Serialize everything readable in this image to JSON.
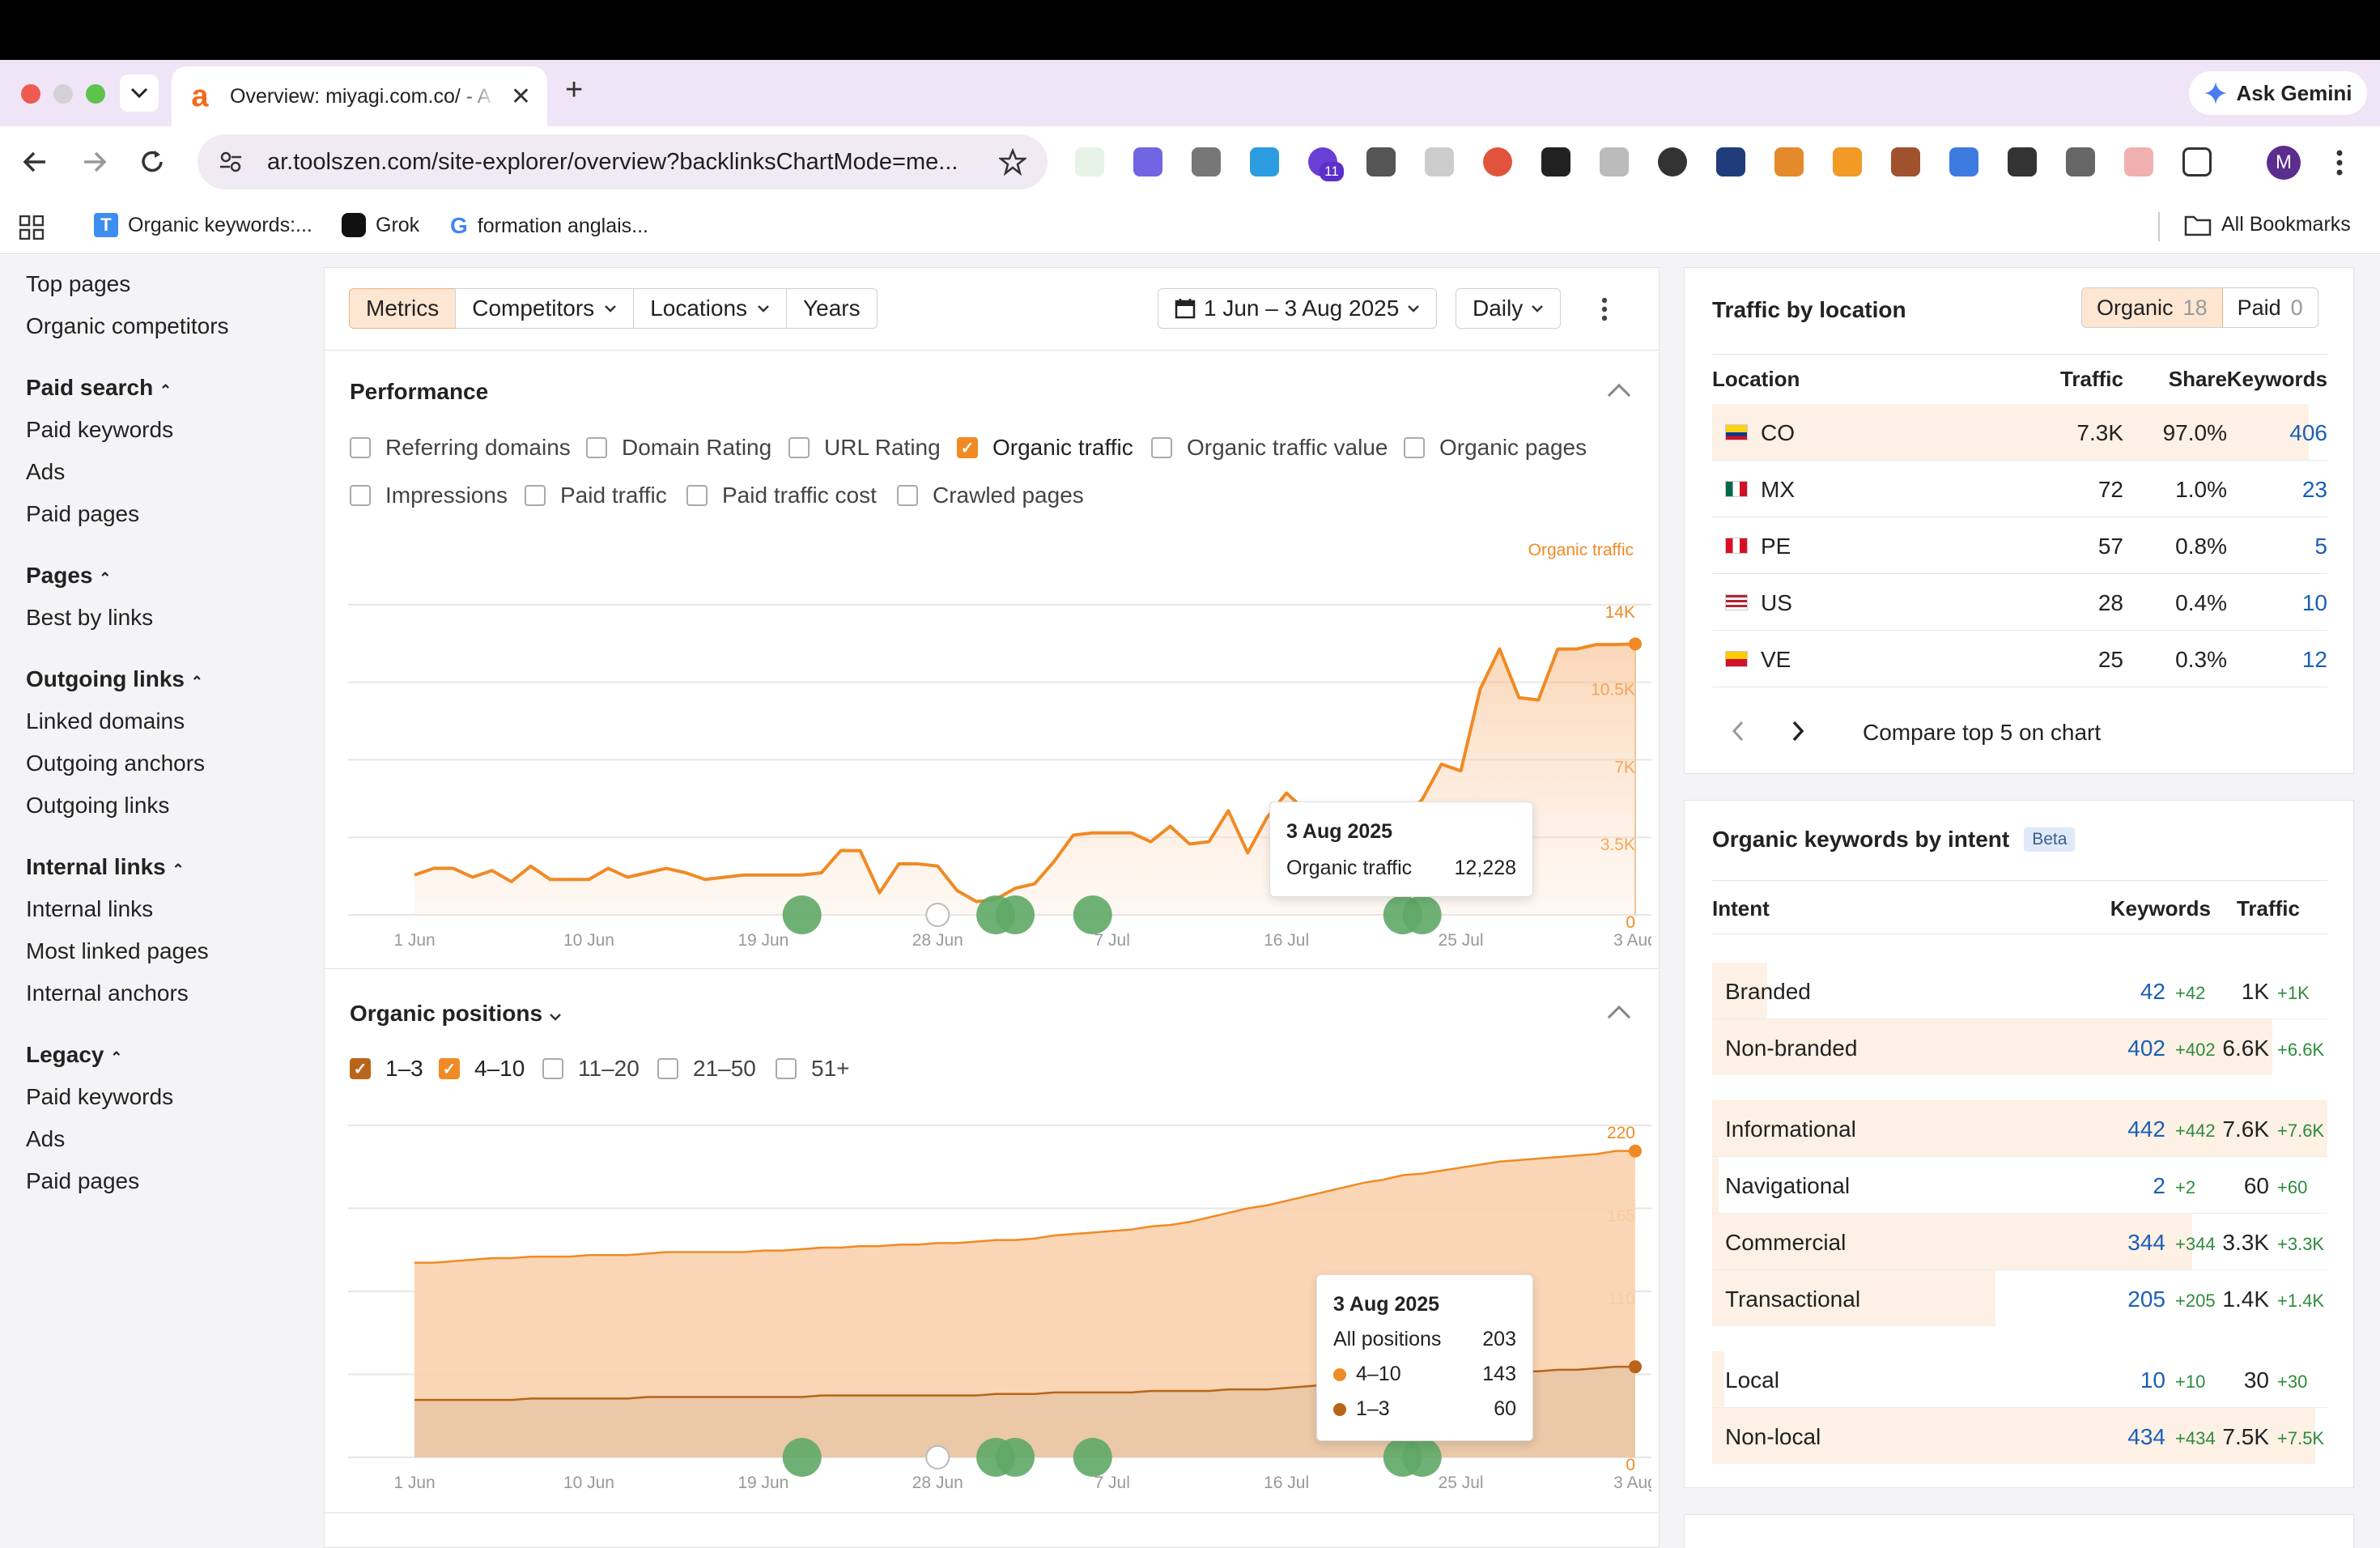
{
  "browser": {
    "tab_title": "Overview: miyagi.com.co/ - A",
    "new_tab": "+",
    "ask_gemini": "Ask Gemini",
    "url": "ar.toolszen.com/site-explorer/overview?backlinksChartMode=me...",
    "profile_initial": "M",
    "extension_badge": "11",
    "bookmarks": [
      {
        "label": "Organic keywords:..."
      },
      {
        "label": "Grok"
      },
      {
        "label": "formation anglais..."
      }
    ],
    "all_bookmarks": "All Bookmarks"
  },
  "sidebar": {
    "top_items": [
      "Top pages",
      "Organic competitors"
    ],
    "sections": [
      {
        "heading": "Paid search",
        "items": [
          "Paid keywords",
          "Ads",
          "Paid pages"
        ]
      },
      {
        "heading": "Pages",
        "items": [
          "Best by links"
        ]
      },
      {
        "heading": "Outgoing links",
        "items": [
          "Linked domains",
          "Outgoing anchors",
          "Outgoing links"
        ]
      },
      {
        "heading": "Internal links",
        "items": [
          "Internal links",
          "Most linked pages",
          "Internal anchors"
        ]
      },
      {
        "heading": "Legacy",
        "items": [
          "Paid keywords",
          "Ads",
          "Paid pages"
        ]
      }
    ]
  },
  "filters": {
    "tabs": [
      "Metrics",
      "Competitors",
      "Locations",
      "Years"
    ],
    "active_tab": "Metrics",
    "date_range": "1 Jun – 3 Aug 2025",
    "granularity": "Daily"
  },
  "performance": {
    "title": "Performance",
    "checkboxes_row1": [
      {
        "label": "Referring domains",
        "checked": false
      },
      {
        "label": "Domain Rating",
        "checked": false
      },
      {
        "label": "URL Rating",
        "checked": false
      },
      {
        "label": "Organic traffic",
        "checked": true
      },
      {
        "label": "Organic traffic value",
        "checked": false
      },
      {
        "label": "Organic pages",
        "checked": false
      }
    ],
    "checkboxes_row2": [
      {
        "label": "Impressions",
        "checked": false
      },
      {
        "label": "Paid traffic",
        "checked": false
      },
      {
        "label": "Paid traffic cost",
        "checked": false
      },
      {
        "label": "Crawled pages",
        "checked": false
      }
    ],
    "series_label": "Organic traffic",
    "tooltip": {
      "date": "3 Aug 2025",
      "label": "Organic traffic",
      "value": "12,228"
    }
  },
  "positions": {
    "title": "Organic positions",
    "checkboxes": [
      {
        "label": "1–3",
        "checked": true
      },
      {
        "label": "4–10",
        "checked": true
      },
      {
        "label": "11–20",
        "checked": false
      },
      {
        "label": "21–50",
        "checked": false
      },
      {
        "label": "51+",
        "checked": false
      }
    ],
    "tooltip": {
      "date": "3 Aug 2025",
      "rows": [
        {
          "label": "All positions",
          "value": "203"
        },
        {
          "label": "4–10",
          "value": "143"
        },
        {
          "label": "1–3",
          "value": "60"
        }
      ]
    }
  },
  "chart_data": [
    {
      "type": "area",
      "series": [
        {
          "name": "Organic traffic",
          "color": "#f08a24"
        }
      ],
      "x": [
        "1 Jun",
        "2 Jun",
        "3 Jun",
        "4 Jun",
        "5 Jun",
        "6 Jun",
        "7 Jun",
        "8 Jun",
        "9 Jun",
        "10 Jun",
        "11 Jun",
        "12 Jun",
        "13 Jun",
        "14 Jun",
        "15 Jun",
        "16 Jun",
        "17 Jun",
        "18 Jun",
        "19 Jun",
        "20 Jun",
        "21 Jun",
        "22 Jun",
        "23 Jun",
        "24 Jun",
        "25 Jun",
        "26 Jun",
        "27 Jun",
        "28 Jun",
        "29 Jun",
        "30 Jun",
        "1 Jul",
        "2 Jul",
        "3 Jul",
        "4 Jul",
        "5 Jul",
        "6 Jul",
        "7 Jul",
        "8 Jul",
        "9 Jul",
        "10 Jul",
        "11 Jul",
        "12 Jul",
        "13 Jul",
        "14 Jul",
        "15 Jul",
        "16 Jul",
        "17 Jul",
        "18 Jul",
        "19 Jul",
        "20 Jul",
        "21 Jul",
        "22 Jul",
        "23 Jul",
        "24 Jul",
        "25 Jul",
        "26 Jul",
        "27 Jul",
        "28 Jul",
        "29 Jul",
        "30 Jul",
        "31 Jul",
        "1 Aug",
        "2 Aug",
        "3 Aug"
      ],
      "values": [
        1800,
        2100,
        2100,
        1700,
        2000,
        1500,
        2200,
        1600,
        1600,
        1600,
        2100,
        1700,
        1900,
        2100,
        1900,
        1600,
        1700,
        1800,
        1800,
        1800,
        1800,
        1900,
        2900,
        2900,
        1000,
        2300,
        2300,
        2200,
        1100,
        600,
        700,
        1200,
        1400,
        2400,
        3600,
        3700,
        3700,
        3700,
        3300,
        4000,
        3200,
        3300,
        4700,
        2800,
        4400,
        5500,
        4700,
        4800,
        4900,
        4900,
        4400,
        4400,
        5200,
        6800,
        6500,
        10200,
        12000,
        9800,
        9700,
        12000,
        12000,
        12200,
        12200,
        12228
      ],
      "xticks": [
        "1 Jun",
        "10 Jun",
        "19 Jun",
        "28 Jun",
        "7 Jul",
        "16 Jul",
        "25 Jul",
        "3 Aug"
      ],
      "yticks": [
        "14K",
        "10.5K",
        "7K",
        "3.5K",
        "0"
      ],
      "ylim": [
        0,
        14000
      ]
    },
    {
      "type": "area",
      "series": [
        {
          "name": "4–10",
          "color": "#f08a24",
          "values": [
            91,
            91,
            92,
            93,
            94,
            94,
            94,
            94,
            94,
            95,
            95,
            95,
            95,
            96,
            96,
            96,
            96,
            96,
            97,
            97,
            98,
            98,
            98,
            99,
            99,
            100,
            100,
            101,
            101,
            102,
            102,
            102,
            103,
            104,
            105,
            106,
            107,
            108,
            109,
            110,
            112,
            115,
            117,
            120,
            122,
            124,
            126,
            128,
            130,
            132,
            134,
            136,
            136,
            137,
            138,
            139,
            140,
            140,
            141,
            141,
            142,
            142,
            143,
            143
          ]
        },
        {
          "name": "1–3",
          "color": "#b8651a",
          "values": [
            38,
            38,
            38,
            38,
            38,
            38,
            39,
            39,
            39,
            39,
            39,
            39,
            40,
            40,
            40,
            40,
            40,
            40,
            40,
            40,
            40,
            41,
            41,
            41,
            41,
            41,
            41,
            41,
            41,
            41,
            42,
            42,
            42,
            43,
            43,
            43,
            43,
            43,
            44,
            44,
            44,
            44,
            45,
            45,
            45,
            46,
            47,
            48,
            49,
            50,
            50,
            51,
            52,
            53,
            54,
            55,
            56,
            57,
            57,
            58,
            58,
            59,
            60,
            60
          ]
        }
      ],
      "xticks": [
        "1 Jun",
        "10 Jun",
        "19 Jun",
        "28 Jun",
        "7 Jul",
        "16 Jul",
        "25 Jul",
        "3 Aug"
      ],
      "yticks": [
        "220",
        "165",
        "110",
        "55",
        "0"
      ],
      "ylim": [
        0,
        220
      ]
    }
  ],
  "traffic_by_location": {
    "title": "Traffic by location",
    "organic_label": "Organic",
    "organic_count": "18",
    "paid_label": "Paid",
    "paid_count": "0",
    "headers": [
      "Location",
      "Traffic",
      "Share",
      "Keywords"
    ],
    "rows": [
      {
        "code": "CO",
        "traffic": "7.3K",
        "share": "97.0%",
        "keywords": "406",
        "share_pct": 97
      },
      {
        "code": "MX",
        "traffic": "72",
        "share": "1.0%",
        "keywords": "23",
        "share_pct": 1
      },
      {
        "code": "PE",
        "traffic": "57",
        "share": "0.8%",
        "keywords": "5",
        "share_pct": 0.8
      },
      {
        "code": "US",
        "traffic": "28",
        "share": "0.4%",
        "keywords": "10",
        "share_pct": 0.4
      },
      {
        "code": "VE",
        "traffic": "25",
        "share": "0.3%",
        "keywords": "12",
        "share_pct": 0.3
      }
    ],
    "compare": "Compare top 5 on chart"
  },
  "keywords_by_intent": {
    "title": "Organic keywords by intent",
    "badge": "Beta",
    "headers": [
      "Intent",
      "Keywords",
      "Traffic"
    ],
    "groups": [
      [
        {
          "intent": "Branded",
          "keywords": "42",
          "kw_delta": "+42",
          "traffic": "1K",
          "tr_delta": "+1K",
          "share": 0.09
        },
        {
          "intent": "Non-branded",
          "keywords": "402",
          "kw_delta": "+402",
          "traffic": "6.6K",
          "tr_delta": "+6.6K",
          "share": 0.91
        }
      ],
      [
        {
          "intent": "Informational",
          "keywords": "442",
          "kw_delta": "+442",
          "traffic": "7.6K",
          "tr_delta": "+7.6K",
          "share": 1.0
        },
        {
          "intent": "Navigational",
          "keywords": "2",
          "kw_delta": "+2",
          "traffic": "60",
          "tr_delta": "+60",
          "share": 0.005
        },
        {
          "intent": "Commercial",
          "keywords": "344",
          "kw_delta": "+344",
          "traffic": "3.3K",
          "tr_delta": "+3.3K",
          "share": 0.78
        },
        {
          "intent": "Transactional",
          "keywords": "205",
          "kw_delta": "+205",
          "traffic": "1.4K",
          "tr_delta": "+1.4K",
          "share": 0.46
        }
      ],
      [
        {
          "intent": "Local",
          "keywords": "10",
          "kw_delta": "+10",
          "traffic": "30",
          "tr_delta": "+30",
          "share": 0.02
        },
        {
          "intent": "Non-local",
          "keywords": "434",
          "kw_delta": "+434",
          "traffic": "7.5K",
          "tr_delta": "+7.5K",
          "share": 0.98
        }
      ]
    ]
  }
}
